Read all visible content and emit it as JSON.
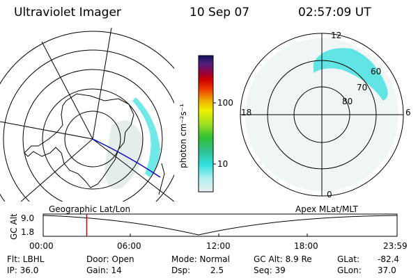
{
  "header": {
    "instrument": "Ultraviolet Imager",
    "date": "10 Sep 07",
    "time": "02:57:09 UT"
  },
  "left_panel": {
    "caption": "Geographic Lat/Lon"
  },
  "right_panel": {
    "caption": "Apex MLat/MLT",
    "mlt_labels": {
      "top": "12",
      "right": "6",
      "bottom": "0",
      "left": "18"
    },
    "mlat_labels": [
      "60",
      "70",
      "80"
    ]
  },
  "colorbar": {
    "unit_label": "photon cm⁻²s⁻¹",
    "ticks": [
      {
        "label": "100",
        "value": 100
      },
      {
        "label": "10",
        "value": 10
      }
    ]
  },
  "altitude_strip": {
    "ylabel": "GC Alt",
    "ymax_label": "9.0",
    "ymin_label": "1.8",
    "x_ticks": [
      "00:00",
      "06:00",
      "12:00",
      "18:00",
      "23:59"
    ],
    "current_time_fraction": 0.123
  },
  "info": {
    "filter": "Flt: LBHL",
    "ip": "IP: 36.0",
    "door": "Door: Open",
    "gain": "Gain: 14",
    "mode_label": "Mode: Normal",
    "dsp_label": "Dsp:",
    "dsp_value": "2.5",
    "gc_alt": "GC Alt: 8.9 Re",
    "seq": "Seq: 39",
    "glat_label": "GLat:",
    "glat_value": "-82.4",
    "glon_label": "GLon:",
    "glon_value": "37.0"
  },
  "colors": {
    "aurora": "#40e0e0",
    "aurora_faint": "#dde8e8",
    "current_time_line": "#cc0000",
    "track_line": "#0000cc"
  }
}
